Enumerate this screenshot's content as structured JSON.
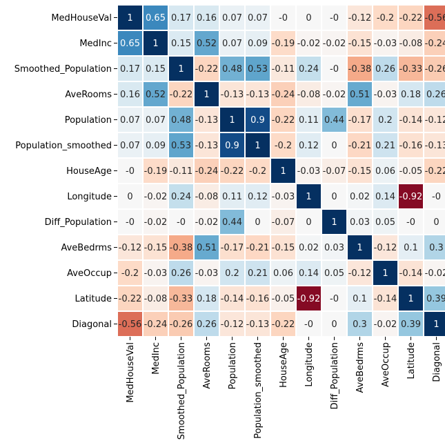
{
  "chart_data": {
    "type": "heatmap",
    "labels": [
      "MedHouseVal",
      "MedInc",
      "Smoothed_Population",
      "AveRooms",
      "Population",
      "Population_smoothed",
      "HouseAge",
      "Longitude",
      "Diff_Population",
      "AveBedrms",
      "AveOccup",
      "Latitude",
      "Diagonal"
    ],
    "values": [
      [
        1,
        0.65,
        0.17,
        0.16,
        0.07,
        0.07,
        0,
        0,
        0,
        -0.12,
        -0.2,
        -0.22,
        -0.56
      ],
      [
        0.65,
        1,
        0.15,
        0.52,
        0.07,
        0.09,
        -0.19,
        -0.02,
        -0.02,
        -0.15,
        -0.03,
        -0.08,
        -0.24
      ],
      [
        0.17,
        0.15,
        1,
        -0.22,
        0.48,
        0.53,
        -0.11,
        0.24,
        0,
        -0.38,
        0.26,
        -0.33,
        -0.26
      ],
      [
        0.16,
        0.52,
        -0.22,
        1,
        -0.13,
        -0.13,
        -0.24,
        -0.08,
        -0.02,
        0.51,
        -0.03,
        0.18,
        0.26
      ],
      [
        0.07,
        0.07,
        0.48,
        -0.13,
        1,
        0.9,
        -0.22,
        0.11,
        0.44,
        -0.17,
        0.2,
        -0.14,
        -0.12
      ],
      [
        0.07,
        0.09,
        0.53,
        -0.13,
        0.9,
        1,
        -0.2,
        0.12,
        0,
        -0.21,
        0.21,
        -0.16,
        -0.13
      ],
      [
        0,
        -0.19,
        -0.11,
        -0.24,
        -0.22,
        -0.2,
        1,
        -0.03,
        -0.07,
        -0.15,
        0.06,
        -0.05,
        -0.22
      ],
      [
        0,
        -0.02,
        0.24,
        -0.08,
        0.11,
        0.12,
        -0.03,
        1,
        0,
        0.02,
        0.14,
        -0.92,
        0
      ],
      [
        0,
        -0.02,
        0,
        -0.02,
        0.44,
        0,
        -0.07,
        0,
        1,
        0.03,
        0.05,
        0,
        0
      ],
      [
        -0.12,
        -0.15,
        -0.38,
        0.51,
        -0.17,
        -0.21,
        -0.15,
        0.02,
        0.03,
        1,
        -0.12,
        0.1,
        0.3
      ],
      [
        -0.2,
        -0.03,
        0.26,
        -0.03,
        0.2,
        0.21,
        0.06,
        0.14,
        0.05,
        -0.12,
        1,
        -0.14,
        -0.02
      ],
      [
        -0.22,
        -0.08,
        -0.33,
        0.18,
        -0.14,
        -0.16,
        -0.05,
        -0.92,
        0,
        0.1,
        -0.14,
        1,
        0.39
      ],
      [
        -0.56,
        -0.24,
        -0.26,
        0.26,
        -0.12,
        -0.13,
        -0.22,
        0,
        0,
        0.3,
        -0.02,
        0.39,
        1
      ]
    ],
    "colormap": "RdBu",
    "vmin": -1,
    "vmax": 1,
    "grid": false,
    "colorbar": false
  }
}
